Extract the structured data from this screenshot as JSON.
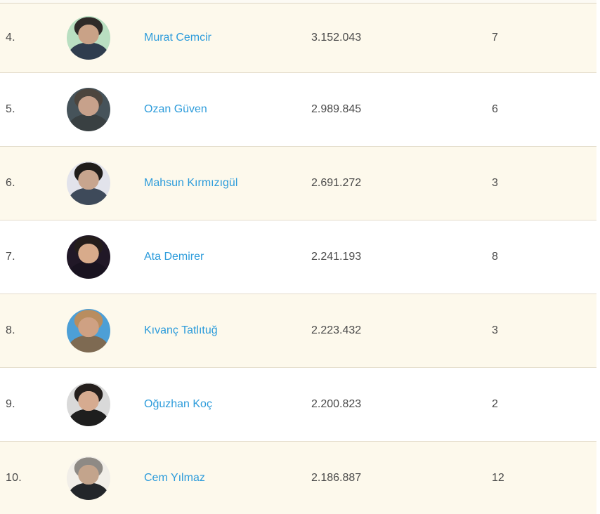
{
  "colors": {
    "link_blue": "#2d9cdb",
    "body_text": "#4a4a4a",
    "row_cream_bg": "#fdf9ec",
    "row_white_bg": "#ffffff",
    "row_border": "#e3dccb"
  },
  "table": {
    "rows": [
      {
        "rank": "4.",
        "name": "Murat Cemcir",
        "value": "3.152.043",
        "count": "7",
        "avatar": {
          "bg": "#b9dfc1",
          "hair": "#2e2a28",
          "skin": "#c9a287",
          "torso": "#2f3d4e"
        }
      },
      {
        "rank": "5.",
        "name": "Ozan Güven",
        "value": "2.989.845",
        "count": "6",
        "avatar": {
          "bg": "#46535a",
          "hair": "#4c453e",
          "skin": "#c7a18b",
          "torso": "#394042"
        }
      },
      {
        "rank": "6.",
        "name": "Mahsun Kırmızıgül",
        "value": "2.691.272",
        "count": "3",
        "avatar": {
          "bg": "#e2e3eb",
          "hair": "#201d1b",
          "skin": "#c8a58e",
          "torso": "#3e4a5a"
        }
      },
      {
        "rank": "7.",
        "name": "Ata Demirer",
        "value": "2.241.193",
        "count": "8",
        "avatar": {
          "bg": "#211827",
          "hair": "#241d1b",
          "skin": "#d8ab8b",
          "torso": "#191320"
        }
      },
      {
        "rank": "8.",
        "name": "Kıvanç Tatlıtuğ",
        "value": "2.223.432",
        "count": "3",
        "avatar": {
          "bg": "#4d9fd6",
          "hair": "#b98d5f",
          "skin": "#cfa183",
          "torso": "#7e6a52"
        }
      },
      {
        "rank": "9.",
        "name": "Oğuzhan Koç",
        "value": "2.200.823",
        "count": "2",
        "avatar": {
          "bg": "#d9d9d9",
          "hair": "#241f1d",
          "skin": "#d6ab90",
          "torso": "#1e1e1e"
        }
      },
      {
        "rank": "10.",
        "name": "Cem Yılmaz",
        "value": "2.186.887",
        "count": "12",
        "avatar": {
          "bg": "#f1eee8",
          "hair": "#8e8a85",
          "skin": "#c3a48c",
          "torso": "#23262a"
        }
      }
    ]
  }
}
